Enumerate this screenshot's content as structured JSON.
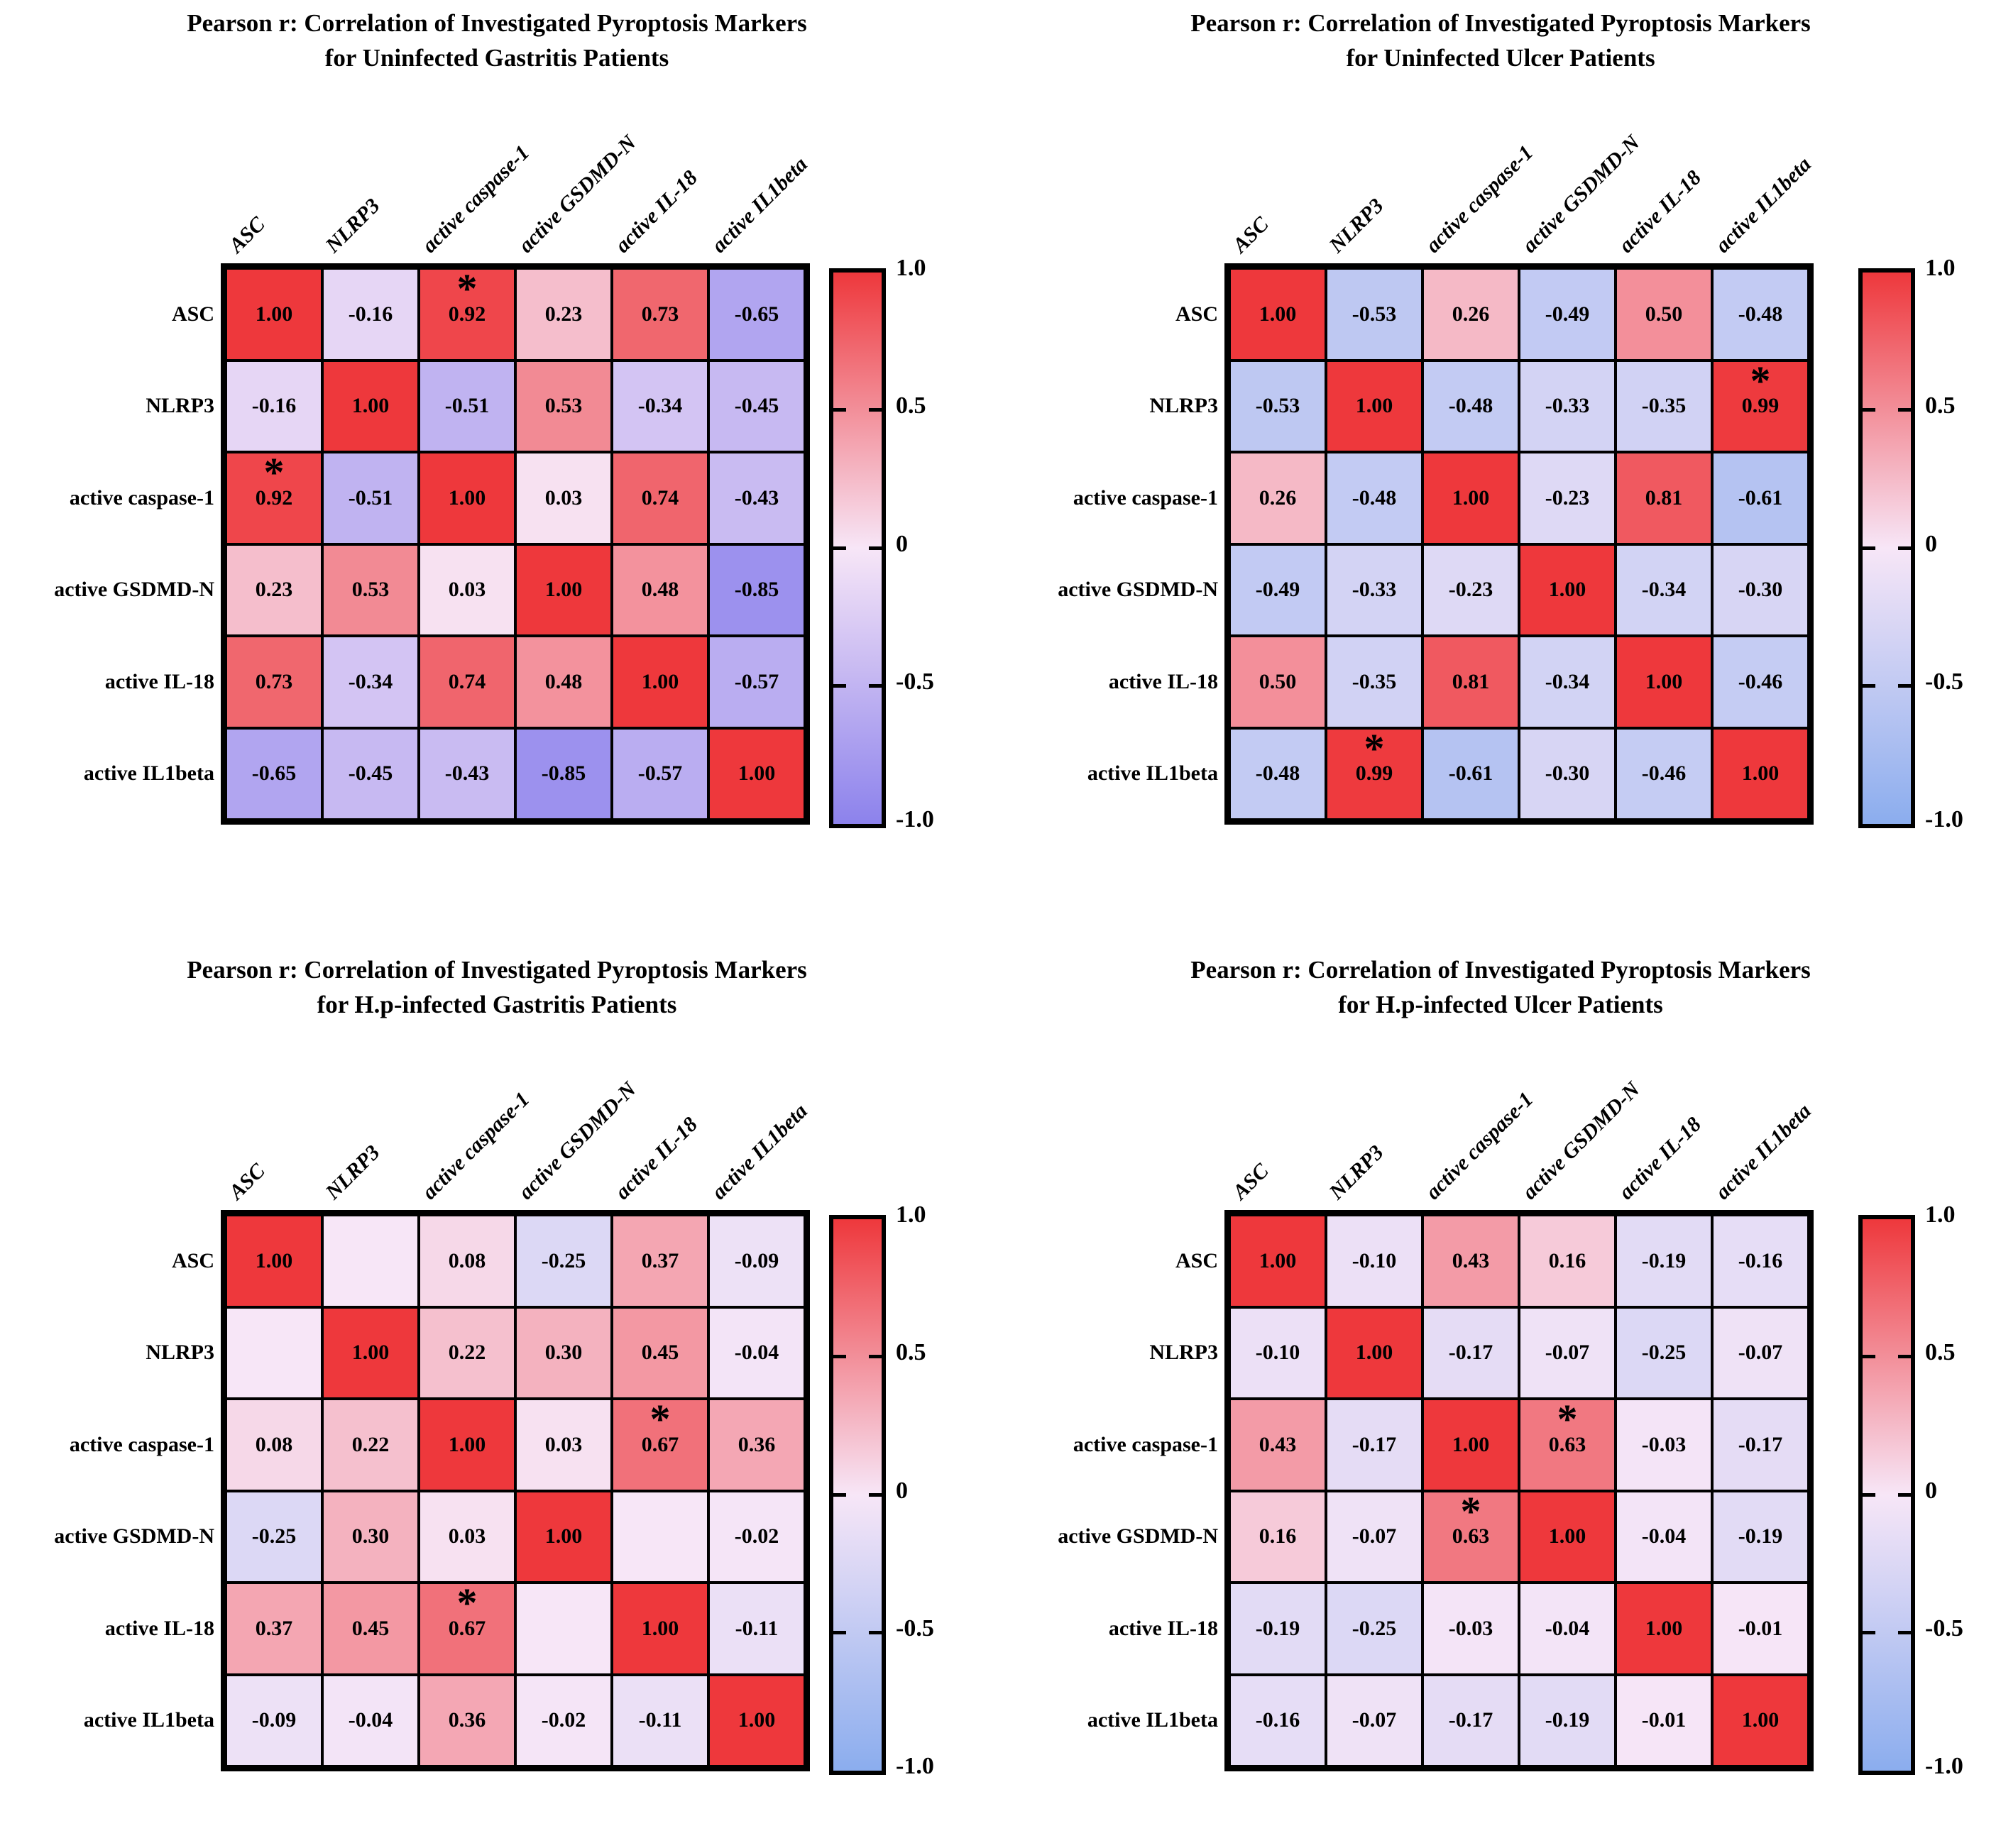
{
  "figure": {
    "markers": [
      "ASC",
      "NLRP3",
      "active caspase-1",
      "active GSDMD-N",
      "active IL-18",
      "active IL1beta"
    ],
    "colorbar_tick_labels": [
      "1.0",
      "0.5",
      "0",
      "-0.5",
      "-1.0"
    ],
    "significance_symbol": "*",
    "grid_color": "#000000"
  },
  "chart_data": [
    {
      "type": "heatmap",
      "title_line1": "Pearson r: Correlation of Investigated Pyroptosis Markers",
      "title_line2": "for Uninfected Gastritis Patients",
      "rows": [
        "ASC",
        "NLRP3",
        "active caspase-1",
        "active GSDMD-N",
        "active IL-18",
        "active IL1beta"
      ],
      "cols": [
        "ASC",
        "NLRP3",
        "active caspase-1",
        "active GSDMD-N",
        "active IL-18",
        "active IL1beta"
      ],
      "values": [
        [
          1.0,
          -0.16,
          0.92,
          0.23,
          0.73,
          -0.65
        ],
        [
          -0.16,
          1.0,
          -0.51,
          0.53,
          -0.34,
          -0.45
        ],
        [
          0.92,
          -0.51,
          1.0,
          0.03,
          0.74,
          -0.43
        ],
        [
          0.23,
          0.53,
          0.03,
          1.0,
          0.48,
          -0.85
        ],
        [
          0.73,
          -0.34,
          0.74,
          0.48,
          1.0,
          -0.57
        ],
        [
          -0.65,
          -0.45,
          -0.43,
          -0.85,
          -0.57,
          1.0
        ]
      ],
      "significant_cells": [
        [
          0,
          2
        ],
        [
          2,
          0
        ]
      ],
      "colormap": {
        "neg": "#8c82ec",
        "mid": "#f7e6f7",
        "pos": "#ee383c"
      },
      "colorbar": {
        "ticks": [
          "1.0",
          "0.5",
          "0",
          "-0.5",
          "-1.0"
        ],
        "range": [
          -1,
          1
        ]
      }
    },
    {
      "type": "heatmap",
      "title_line1": "Pearson r: Correlation of Investigated Pyroptosis Markers",
      "title_line2": "for Uninfected Ulcer Patients",
      "rows": [
        "ASC",
        "NLRP3",
        "active caspase-1",
        "active GSDMD-N",
        "active IL-18",
        "active IL1beta"
      ],
      "cols": [
        "ASC",
        "NLRP3",
        "active caspase-1",
        "active GSDMD-N",
        "active IL-18",
        "active IL1beta"
      ],
      "values": [
        [
          1.0,
          -0.53,
          0.26,
          -0.49,
          0.5,
          -0.48
        ],
        [
          -0.53,
          1.0,
          -0.48,
          -0.33,
          -0.35,
          0.99
        ],
        [
          0.26,
          -0.48,
          1.0,
          -0.23,
          0.81,
          -0.61
        ],
        [
          -0.49,
          -0.33,
          -0.23,
          1.0,
          -0.34,
          -0.3
        ],
        [
          0.5,
          -0.35,
          0.81,
          -0.34,
          1.0,
          -0.46
        ],
        [
          -0.48,
          0.99,
          -0.61,
          -0.3,
          -0.46,
          1.0
        ]
      ],
      "significant_cells": [
        [
          1,
          5
        ],
        [
          5,
          1
        ]
      ],
      "colormap": {
        "neg": "#8badee",
        "mid": "#f7e6f7",
        "pos": "#ee383c"
      },
      "colorbar": {
        "ticks": [
          "1.0",
          "0.5",
          "0",
          "-0.5",
          "-1.0"
        ],
        "range": [
          -1,
          1
        ]
      }
    },
    {
      "type": "heatmap",
      "title_line1": "Pearson r: Correlation of Investigated Pyroptosis Markers",
      "title_line2": "for H.p-infected Gastritis Patients",
      "rows": [
        "ASC",
        "NLRP3",
        "active caspase-1",
        "active GSDMD-N",
        "active IL-18",
        "active IL1beta"
      ],
      "cols": [
        "ASC",
        "NLRP3",
        "active caspase-1",
        "active GSDMD-N",
        "active IL-18",
        "active IL1beta"
      ],
      "values": [
        [
          1.0,
          null,
          0.08,
          -0.25,
          0.37,
          -0.09
        ],
        [
          null,
          1.0,
          0.22,
          0.3,
          0.45,
          -0.04
        ],
        [
          0.08,
          0.22,
          1.0,
          0.03,
          0.67,
          0.36
        ],
        [
          -0.25,
          0.3,
          0.03,
          1.0,
          null,
          -0.02
        ],
        [
          0.37,
          0.45,
          0.67,
          null,
          1.0,
          -0.11
        ],
        [
          -0.09,
          -0.04,
          0.36,
          -0.02,
          -0.11,
          1.0
        ]
      ],
      "significant_cells": [
        [
          2,
          4
        ],
        [
          4,
          2
        ]
      ],
      "colormap": {
        "neg": "#8badee",
        "mid": "#f7e6f7",
        "pos": "#ee383c"
      },
      "colorbar": {
        "ticks": [
          "1.0",
          "0.5",
          "0",
          "-0.5",
          "-1.0"
        ],
        "range": [
          -1,
          1
        ]
      }
    },
    {
      "type": "heatmap",
      "title_line1": "Pearson r: Correlation of Investigated Pyroptosis Markers",
      "title_line2": "for H.p-infected Ulcer Patients",
      "rows": [
        "ASC",
        "NLRP3",
        "active caspase-1",
        "active GSDMD-N",
        "active IL-18",
        "active IL1beta"
      ],
      "cols": [
        "ASC",
        "NLRP3",
        "active caspase-1",
        "active GSDMD-N",
        "active IL-18",
        "active IL1beta"
      ],
      "values": [
        [
          1.0,
          -0.1,
          0.43,
          0.16,
          -0.19,
          -0.16
        ],
        [
          -0.1,
          1.0,
          -0.17,
          -0.07,
          -0.25,
          -0.07
        ],
        [
          0.43,
          -0.17,
          1.0,
          0.63,
          -0.03,
          -0.17
        ],
        [
          0.16,
          -0.07,
          0.63,
          1.0,
          -0.04,
          -0.19
        ],
        [
          -0.19,
          -0.25,
          -0.03,
          -0.04,
          1.0,
          -0.01
        ],
        [
          -0.16,
          -0.07,
          -0.17,
          -0.19,
          -0.01,
          1.0
        ]
      ],
      "significant_cells": [
        [
          2,
          3
        ],
        [
          3,
          2
        ]
      ],
      "colormap": {
        "neg": "#8badee",
        "mid": "#f7e6f7",
        "pos": "#ee383c"
      },
      "colorbar": {
        "ticks": [
          "1.0",
          "0.5",
          "0",
          "-0.5",
          "-1.0"
        ],
        "range": [
          -1,
          1
        ]
      }
    }
  ]
}
